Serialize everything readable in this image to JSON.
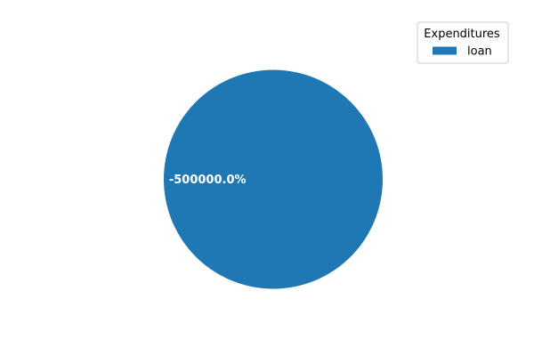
{
  "chart_data": {
    "type": "pie",
    "title": "",
    "slices": [
      {
        "label": "loan",
        "value": -500000.0,
        "display_label": "-500000.0%",
        "color": "#1f77b4"
      }
    ],
    "legend": {
      "title": "Expenditures",
      "placement": "top-right"
    },
    "label_color": "#ffffff"
  }
}
